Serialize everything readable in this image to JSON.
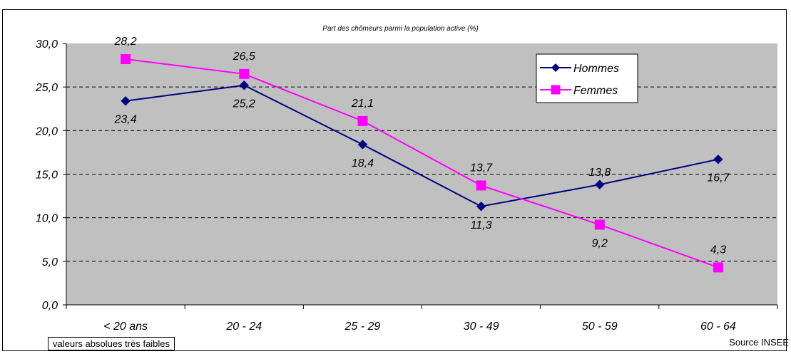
{
  "chart_data": {
    "type": "line",
    "title": "Part des chômeurs parmi la population active (%)",
    "categories": [
      "< 20 ans",
      "20 - 24",
      "25 - 29",
      "30 - 49",
      "50 - 59",
      "60 - 64"
    ],
    "ylim": [
      0,
      30
    ],
    "yticks": [
      "0,0",
      "5,0",
      "10,0",
      "15,0",
      "20,0",
      "25,0",
      "30,0"
    ],
    "grid": true,
    "legend_position": "top-right",
    "series": [
      {
        "name": "Hommes",
        "color": "#000080",
        "marker": "diamond",
        "values": [
          23.4,
          25.2,
          18.4,
          11.3,
          13.8,
          16.7
        ],
        "labels": [
          "23,4",
          "25,2",
          "18,4",
          "11,3",
          "13,8",
          "16,7"
        ]
      },
      {
        "name": "Femmes",
        "color": "#ff00ff",
        "marker": "square",
        "values": [
          28.2,
          26.5,
          21.1,
          13.7,
          9.2,
          4.3
        ],
        "labels": [
          "28,2",
          "26,5",
          "21,1",
          "13,7",
          "9,2",
          "4,3"
        ]
      }
    ]
  },
  "notes": {
    "box": "valeurs absolues très faibles",
    "source": "Source INSEE"
  },
  "colors": {
    "plot_bg": "#c0c0c0",
    "grid": "#000000"
  }
}
